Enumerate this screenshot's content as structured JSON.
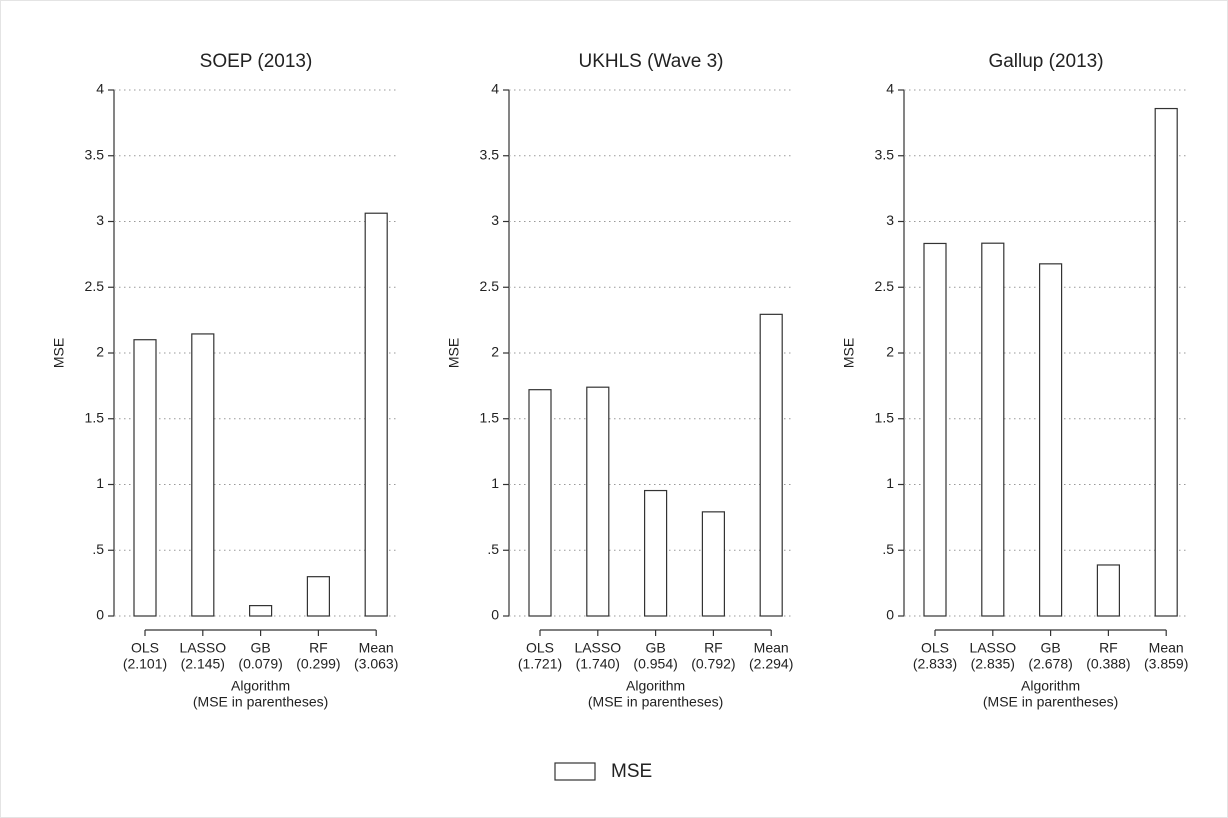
{
  "chart_data": [
    {
      "type": "bar",
      "title": "SOEP (2013)",
      "ylabel": "MSE",
      "xlabel": [
        "Algorithm",
        "(MSE in parentheses)"
      ],
      "categories": [
        "OLS",
        "LASSO",
        "GB",
        "RF",
        "Mean"
      ],
      "values": [
        2.101,
        2.145,
        0.079,
        0.299,
        3.063
      ],
      "value_labels": [
        "(2.101)",
        "(2.145)",
        "(0.079)",
        "(0.299)",
        "(3.063)"
      ],
      "color": "#ffffff",
      "ylim": [
        0,
        4
      ],
      "yticks": [
        0,
        {
          "value": 0.5,
          "label": ".5"
        },
        1,
        1.5,
        2,
        2.5,
        3,
        3.5,
        4
      ],
      "grid": true
    },
    {
      "type": "bar",
      "title": "UKHLS (Wave 3)",
      "ylabel": "MSE",
      "xlabel": [
        "Algorithm",
        "(MSE in parentheses)"
      ],
      "categories": [
        "OLS",
        "LASSO",
        "GB",
        "RF",
        "Mean"
      ],
      "values": [
        1.721,
        1.74,
        0.954,
        0.792,
        2.294
      ],
      "value_labels": [
        "(1.721)",
        "(1.740)",
        "(0.954)",
        "(0.792)",
        "(2.294)"
      ],
      "color": "#ffffff",
      "ylim": [
        0,
        4
      ],
      "yticks": [
        0,
        {
          "value": 0.5,
          "label": ".5"
        },
        1,
        1.5,
        2,
        2.5,
        3,
        3.5,
        4
      ],
      "grid": true
    },
    {
      "type": "bar",
      "title": "Gallup (2013)",
      "ylabel": "MSE",
      "xlabel": [
        "Algorithm",
        "(MSE in parentheses)"
      ],
      "categories": [
        "OLS",
        "LASSO",
        "GB",
        "RF",
        "Mean"
      ],
      "values": [
        2.833,
        2.835,
        2.678,
        0.388,
        3.859
      ],
      "value_labels": [
        "(2.833)",
        "(2.835)",
        "(2.678)",
        "(0.388)",
        "(3.859)"
      ],
      "color": "#ffffff",
      "ylim": [
        0,
        4
      ],
      "yticks": [
        0,
        {
          "value": 0.5,
          "label": ".5"
        },
        1,
        1.5,
        2,
        2.5,
        3,
        3.5,
        4
      ],
      "grid": true
    }
  ],
  "legend": "MSE"
}
